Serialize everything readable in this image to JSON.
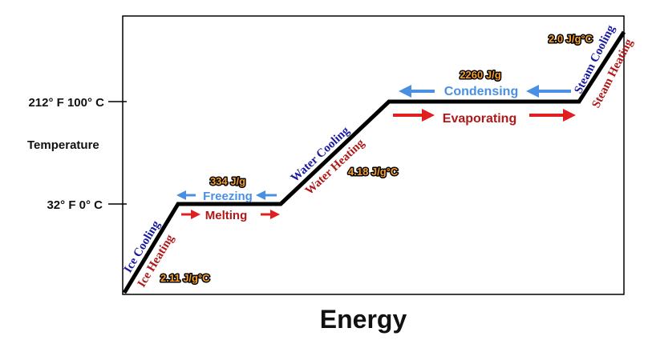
{
  "axes": {
    "y_title": "Temperature",
    "x_title": "Energy",
    "tick_high": "212° F  100° C",
    "tick_low": "32° F  0° C"
  },
  "specific_heats": {
    "ice": "2.11 J/g°C",
    "water": "4.18 J/g°C",
    "steam": "2.0 J/g°C"
  },
  "latent_heats": {
    "fusion": "334 J/g",
    "vaporization": "2260 J/g"
  },
  "process_labels": {
    "ice_cooling": "Ice Cooling",
    "ice_heating": "Ice Heating",
    "freezing": "Freezing",
    "melting": "Melting",
    "water_cooling": "Water Cooling",
    "water_heating": "Water Heating",
    "condensing": "Condensing",
    "evaporating": "Evaporating",
    "steam_cooling": "Steam Cooling",
    "steam_heating": "Steam Heating"
  },
  "colors": {
    "cooling": "#1a1aa0",
    "heating": "#b01818",
    "freeze_arrow": "#4a90e2",
    "melt_arrow": "#e02020",
    "value_fill": "#f5a030",
    "curve": "#000000"
  }
}
